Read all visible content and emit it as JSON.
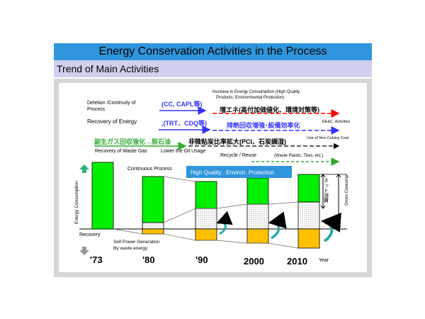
{
  "header": {
    "title": "Energy Conservation Activities in the Process",
    "subtitle": "Trend of Main Activities"
  },
  "labels": {
    "deletion": "Deletion /Continuity  of Process",
    "deletion_l1": "Deletion /Continuity   of",
    "deletion_l2": "Process",
    "cc": "(CC, CAPL等)",
    "increase_l1": "Increase in Energy Consumption  (High Quality",
    "increase_l2": "Products,  Environmental Protection)",
    "increase_jp": "増エネ(高付加価値化、環境対策等)",
    "eec": "EE&C, Activities",
    "recovery_energy": "Recovery of Energy",
    "trt": ",(TRT、CDQ等)",
    "heat_recovery_jp": "排熱回収増強･設備効率化",
    "non_coking": "Use of Non Coking Coal",
    "waste_gas_jp": "副生ガス回収強化→脱石油",
    "pci_jp": "非微粘炭比率拡大(PCI、石炭調湿)",
    "recovery_waste_gas": "Recovery of Waste Gas",
    "lower_oil": "Lower the Oil Usage",
    "recycle": "Recycle / Reuse",
    "waste_plastic": "(Waste Plastic, Tires, etc.)",
    "continuous": "Continuous Process",
    "high_quality": "High Quality , Environ. Protection",
    "net_consumption_jp": "ネット消費",
    "gross_consump": "Gross Consump",
    "energy_consumption": "Energy Consumption",
    "recovery": "Recovery",
    "self_power_l1": "Self Power Generation",
    "self_power_l2": "By waste energy",
    "year": "Year"
  },
  "years": [
    "'73",
    "'80",
    "'90",
    "2000",
    "2010"
  ],
  "colors": {
    "green": "#00ee00",
    "orange": "#ffc000",
    "blue_arrow": "#3333ff",
    "red_arrow": "#ff0000",
    "green_arrow": "#33aa33",
    "title_bg": "#2f95dc",
    "sub_bg": "#cfd0ee",
    "callout_bg": "#2f95dc"
  }
}
